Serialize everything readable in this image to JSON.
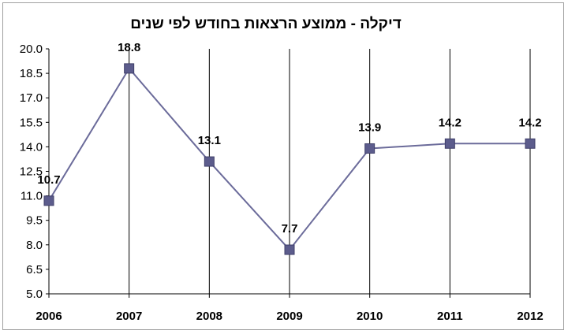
{
  "chart_data": {
    "type": "line",
    "title": "דיקלה - ממוצע הרצאות בחודש לפי שנים",
    "xlabel": "",
    "ylabel": "",
    "categories": [
      "2006",
      "2007",
      "2008",
      "2009",
      "2010",
      "2011",
      "2012"
    ],
    "series": [
      {
        "values": [
          10.7,
          18.8,
          13.1,
          7.7,
          13.9,
          14.2,
          14.2
        ],
        "data_labels": [
          "10.7",
          "18.8",
          "13.1",
          "7.7",
          "13.9",
          "14.2",
          "14.2"
        ],
        "color": "#6b6b9a",
        "marker": "square",
        "marker_color": "#5c5c8c"
      }
    ],
    "ylim": [
      5.0,
      20.0
    ],
    "yticks": [
      "5.0",
      "6.5",
      "8.0",
      "9.5",
      "11.0",
      "12.5",
      "14.0",
      "15.5",
      "17.0",
      "18.5",
      "20.0"
    ],
    "grid": "vertical",
    "legend": "none"
  }
}
